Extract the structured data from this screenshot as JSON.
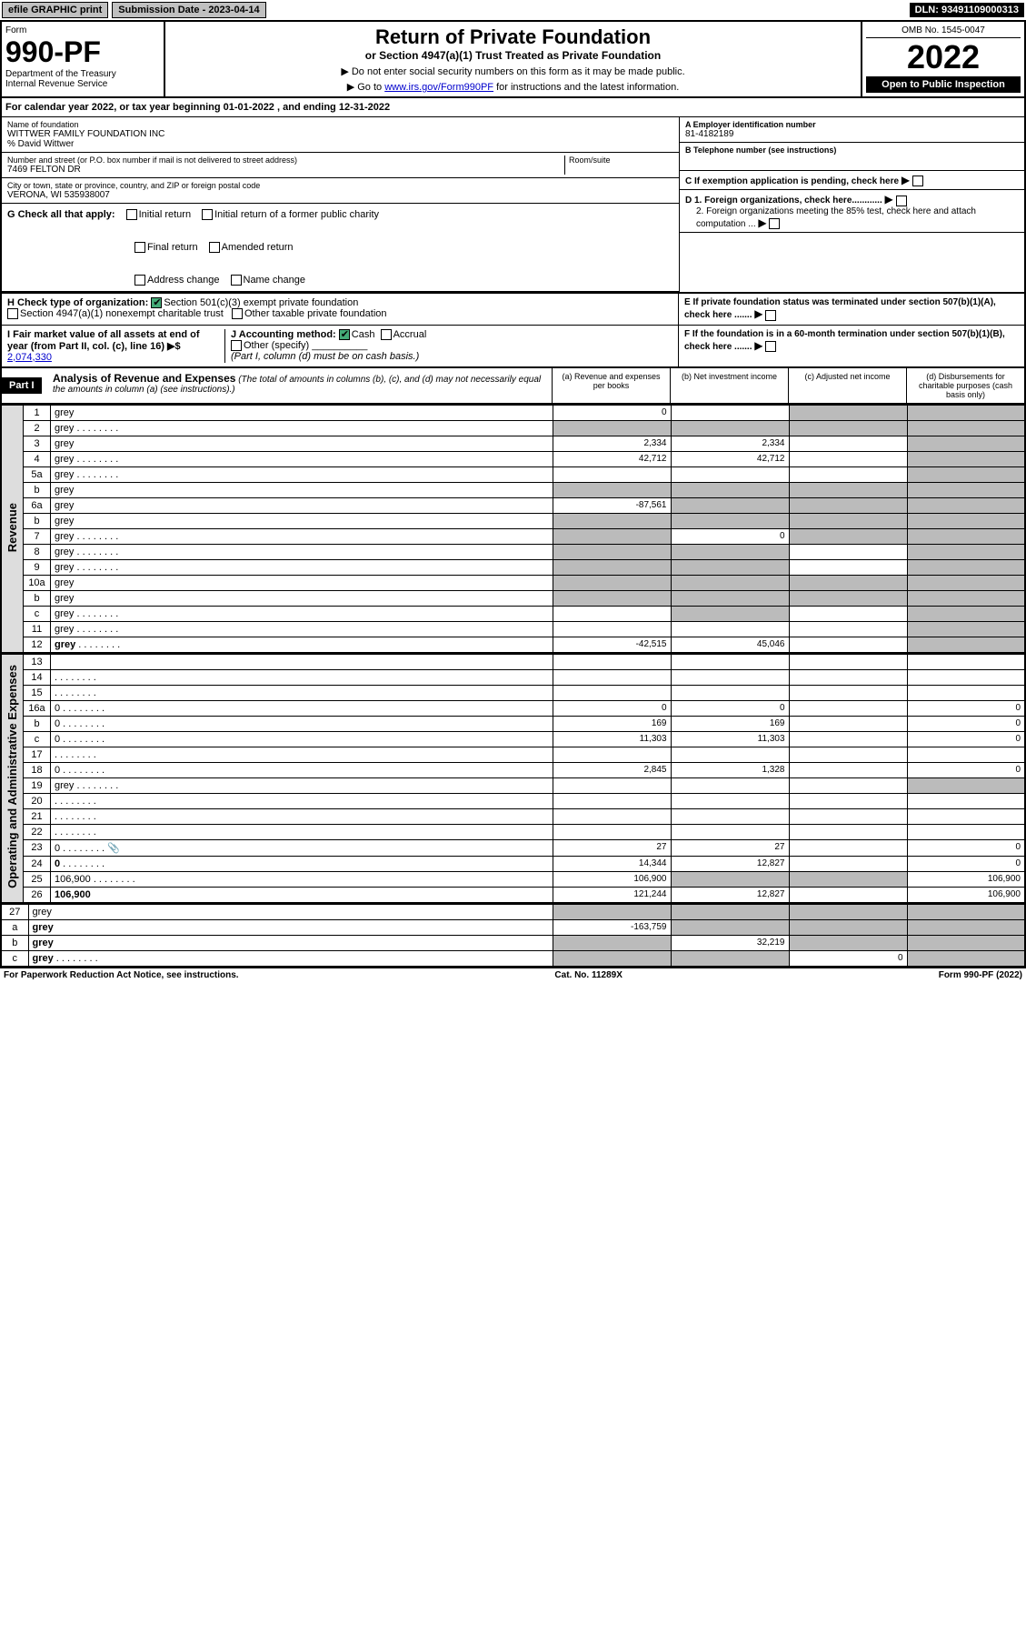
{
  "topbar": {
    "efile": "efile GRAPHIC print",
    "sub_label": "Submission Date - 2023-04-14",
    "dln": "DLN: 93491109000313"
  },
  "header": {
    "form_word": "Form",
    "form_number": "990-PF",
    "dept": "Department of the Treasury\nInternal Revenue Service",
    "title": "Return of Private Foundation",
    "subtitle": "or Section 4947(a)(1) Trust Treated as Private Foundation",
    "instr1": "▶ Do not enter social security numbers on this form as it may be made public.",
    "instr2_pre": "▶ Go to ",
    "instr2_link": "www.irs.gov/Form990PF",
    "instr2_post": " for instructions and the latest information.",
    "omb": "OMB No. 1545-0047",
    "year": "2022",
    "open": "Open to Public Inspection"
  },
  "calendar": {
    "text_pre": "For calendar year 2022, or tax year beginning ",
    "begin": "01-01-2022",
    "text_mid": " , and ending ",
    "end": "12-31-2022"
  },
  "info": {
    "name_lbl": "Name of foundation",
    "name_val": "WITTWER FAMILY FOUNDATION INC",
    "care_of": "% David Wittwer",
    "addr_lbl": "Number and street (or P.O. box number if mail is not delivered to street address)",
    "addr_val": "7469 FELTON DR",
    "room_lbl": "Room/suite",
    "city_lbl": "City or town, state or province, country, and ZIP or foreign postal code",
    "city_val": "VERONA, WI  535938007",
    "ein_lbl": "A Employer identification number",
    "ein_val": "81-4182189",
    "tel_lbl": "B Telephone number (see instructions)",
    "pending_lbl": "C If exemption application is pending, check here",
    "d1": "D 1. Foreign organizations, check here............",
    "d2": "2. Foreign organizations meeting the 85% test, check here and attach computation ...",
    "e_lbl": "E  If private foundation status was terminated under section 507(b)(1)(A), check here .......",
    "f_lbl": "F  If the foundation is in a 60-month termination under section 507(b)(1)(B), check here .......",
    "g_lbl": "G Check all that apply:",
    "g_initial": "Initial return",
    "g_initial_former": "Initial return of a former public charity",
    "g_final": "Final return",
    "g_amended": "Amended return",
    "g_address": "Address change",
    "g_name": "Name change",
    "h_lbl": "H Check type of organization:",
    "h_501c3": "Section 501(c)(3) exempt private foundation",
    "h_4947": "Section 4947(a)(1) nonexempt charitable trust",
    "h_other": "Other taxable private foundation",
    "i_lbl": "I Fair market value of all assets at end of year (from Part II, col. (c), line 16) ▶$ ",
    "i_val": "2,074,330",
    "j_lbl": "J Accounting method:",
    "j_cash": "Cash",
    "j_accrual": "Accrual",
    "j_other": "Other (specify)",
    "j_note": "(Part I, column (d) must be on cash basis.)"
  },
  "part1": {
    "label": "Part I",
    "title": "Analysis of Revenue and Expenses",
    "title_note": "(The total of amounts in columns (b), (c), and (d) may not necessarily equal the amounts in column (a) (see instructions).)",
    "col_a": "(a)   Revenue and expenses per books",
    "col_b": "(b)   Net investment income",
    "col_c": "(c)   Adjusted net income",
    "col_d": "(d)   Disbursements for charitable purposes (cash basis only)"
  },
  "sides": {
    "revenue": "Revenue",
    "expenses": "Operating and Administrative Expenses"
  },
  "rows": [
    {
      "n": "1",
      "d": "grey",
      "a": "0",
      "b": "",
      "c": "grey"
    },
    {
      "n": "2",
      "d": "grey",
      "a": "grey",
      "b": "grey",
      "c": "grey",
      "dot": true
    },
    {
      "n": "3",
      "d": "grey",
      "a": "2,334",
      "b": "2,334",
      "c": ""
    },
    {
      "n": "4",
      "d": "grey",
      "a": "42,712",
      "b": "42,712",
      "c": "",
      "dot": true
    },
    {
      "n": "5a",
      "d": "grey",
      "a": "",
      "b": "",
      "c": "",
      "dot": true
    },
    {
      "n": "b",
      "d": "grey",
      "a": "grey",
      "b": "grey",
      "c": "grey"
    },
    {
      "n": "6a",
      "d": "grey",
      "a": "-87,561",
      "b": "grey",
      "c": "grey"
    },
    {
      "n": "b",
      "d": "grey",
      "a": "grey",
      "b": "grey",
      "c": "grey"
    },
    {
      "n": "7",
      "d": "grey",
      "a": "grey",
      "b": "0",
      "c": "grey",
      "dot": true
    },
    {
      "n": "8",
      "d": "grey",
      "a": "grey",
      "b": "grey",
      "c": "",
      "dot": true
    },
    {
      "n": "9",
      "d": "grey",
      "a": "grey",
      "b": "grey",
      "c": "",
      "dot": true
    },
    {
      "n": "10a",
      "d": "grey",
      "a": "grey",
      "b": "grey",
      "c": "grey"
    },
    {
      "n": "b",
      "d": "grey",
      "a": "grey",
      "b": "grey",
      "c": "grey"
    },
    {
      "n": "c",
      "d": "grey",
      "a": "",
      "b": "grey",
      "c": "",
      "dot": true
    },
    {
      "n": "11",
      "d": "grey",
      "a": "",
      "b": "",
      "c": "",
      "dot": true
    },
    {
      "n": "12",
      "d": "grey",
      "a": "-42,515",
      "b": "45,046",
      "c": "",
      "bold": true,
      "dot": true
    }
  ],
  "exp_rows": [
    {
      "n": "13",
      "d": "",
      "a": "",
      "b": "",
      "c": ""
    },
    {
      "n": "14",
      "d": "",
      "a": "",
      "b": "",
      "c": "",
      "dot": true
    },
    {
      "n": "15",
      "d": "",
      "a": "",
      "b": "",
      "c": "",
      "dot": true
    },
    {
      "n": "16a",
      "d": "0",
      "a": "0",
      "b": "0",
      "c": "",
      "dot": true
    },
    {
      "n": "b",
      "d": "0",
      "a": "169",
      "b": "169",
      "c": "",
      "dot": true
    },
    {
      "n": "c",
      "d": "0",
      "a": "11,303",
      "b": "11,303",
      "c": "",
      "dot": true
    },
    {
      "n": "17",
      "d": "",
      "a": "",
      "b": "",
      "c": "",
      "dot": true
    },
    {
      "n": "18",
      "d": "0",
      "a": "2,845",
      "b": "1,328",
      "c": "",
      "dot": true
    },
    {
      "n": "19",
      "d": "grey",
      "a": "",
      "b": "",
      "c": "",
      "dot": true
    },
    {
      "n": "20",
      "d": "",
      "a": "",
      "b": "",
      "c": "",
      "dot": true
    },
    {
      "n": "21",
      "d": "",
      "a": "",
      "b": "",
      "c": "",
      "dot": true
    },
    {
      "n": "22",
      "d": "",
      "a": "",
      "b": "",
      "c": "",
      "dot": true
    },
    {
      "n": "23",
      "d": "0",
      "a": "27",
      "b": "27",
      "c": "",
      "icon": true,
      "dot": true
    },
    {
      "n": "24",
      "d": "0",
      "a": "14,344",
      "b": "12,827",
      "c": "",
      "bold": true,
      "dot": true
    },
    {
      "n": "25",
      "d": "106,900",
      "a": "106,900",
      "b": "grey",
      "c": "grey",
      "dot": true
    },
    {
      "n": "26",
      "d": "106,900",
      "a": "121,244",
      "b": "12,827",
      "c": "",
      "bold": true
    }
  ],
  "sub_rows": [
    {
      "n": "27",
      "d": "grey",
      "a": "grey",
      "b": "grey",
      "c": "grey"
    },
    {
      "n": "a",
      "d": "grey",
      "a": "-163,759",
      "b": "grey",
      "c": "grey",
      "bold": true
    },
    {
      "n": "b",
      "d": "grey",
      "a": "grey",
      "b": "32,219",
      "c": "grey",
      "bold": true
    },
    {
      "n": "c",
      "d": "grey",
      "a": "grey",
      "b": "grey",
      "c": "0",
      "bold": true,
      "dot": true
    }
  ],
  "footer": {
    "left": "For Paperwork Reduction Act Notice, see instructions.",
    "center": "Cat. No. 11289X",
    "right": "Form 990-PF (2022)"
  },
  "colors": {
    "black": "#000000",
    "grey_cell": "#bbbbbb",
    "side_grey": "#dddddd",
    "link": "#0000cc",
    "check_green": "#44aa77"
  }
}
